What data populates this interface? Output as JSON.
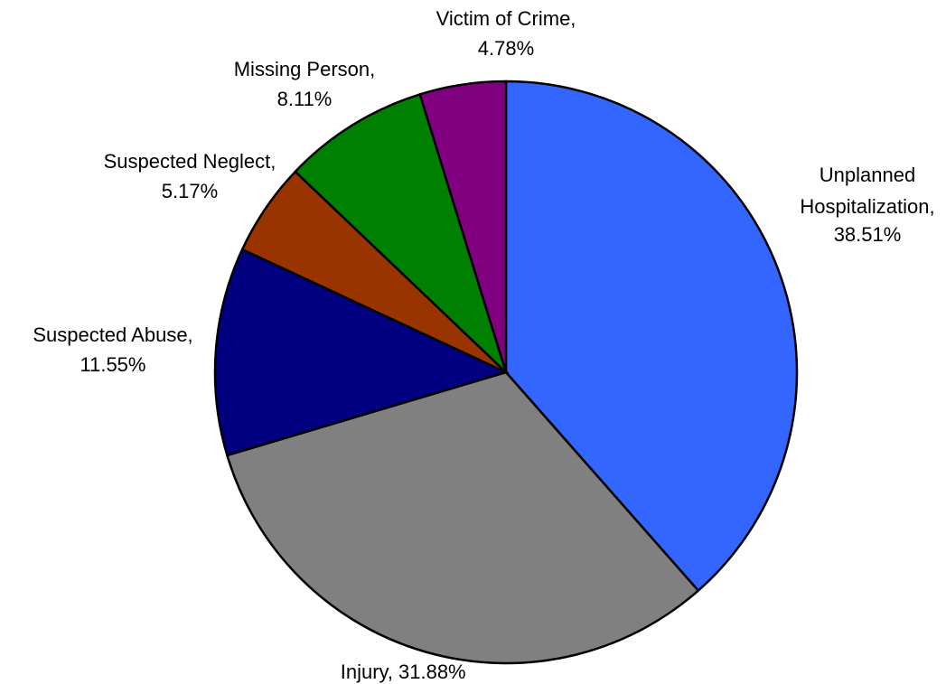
{
  "chart_data": {
    "type": "pie",
    "categories": [
      "Unplanned Hospitalization,",
      "Injury,",
      "Suspected Abuse,",
      "Suspected Neglect,",
      "Missing Person,",
      "Victim of Crime,"
    ],
    "values": [
      38.51,
      31.88,
      11.55,
      5.17,
      8.11,
      4.78
    ],
    "value_labels": [
      "38.51%",
      "31.88%",
      "11.55%",
      "5.17%",
      "8.11%",
      "4.78%"
    ],
    "colors": [
      "#3366ff",
      "#808080",
      "#000080",
      "#993300",
      "#008000",
      "#800080"
    ]
  }
}
